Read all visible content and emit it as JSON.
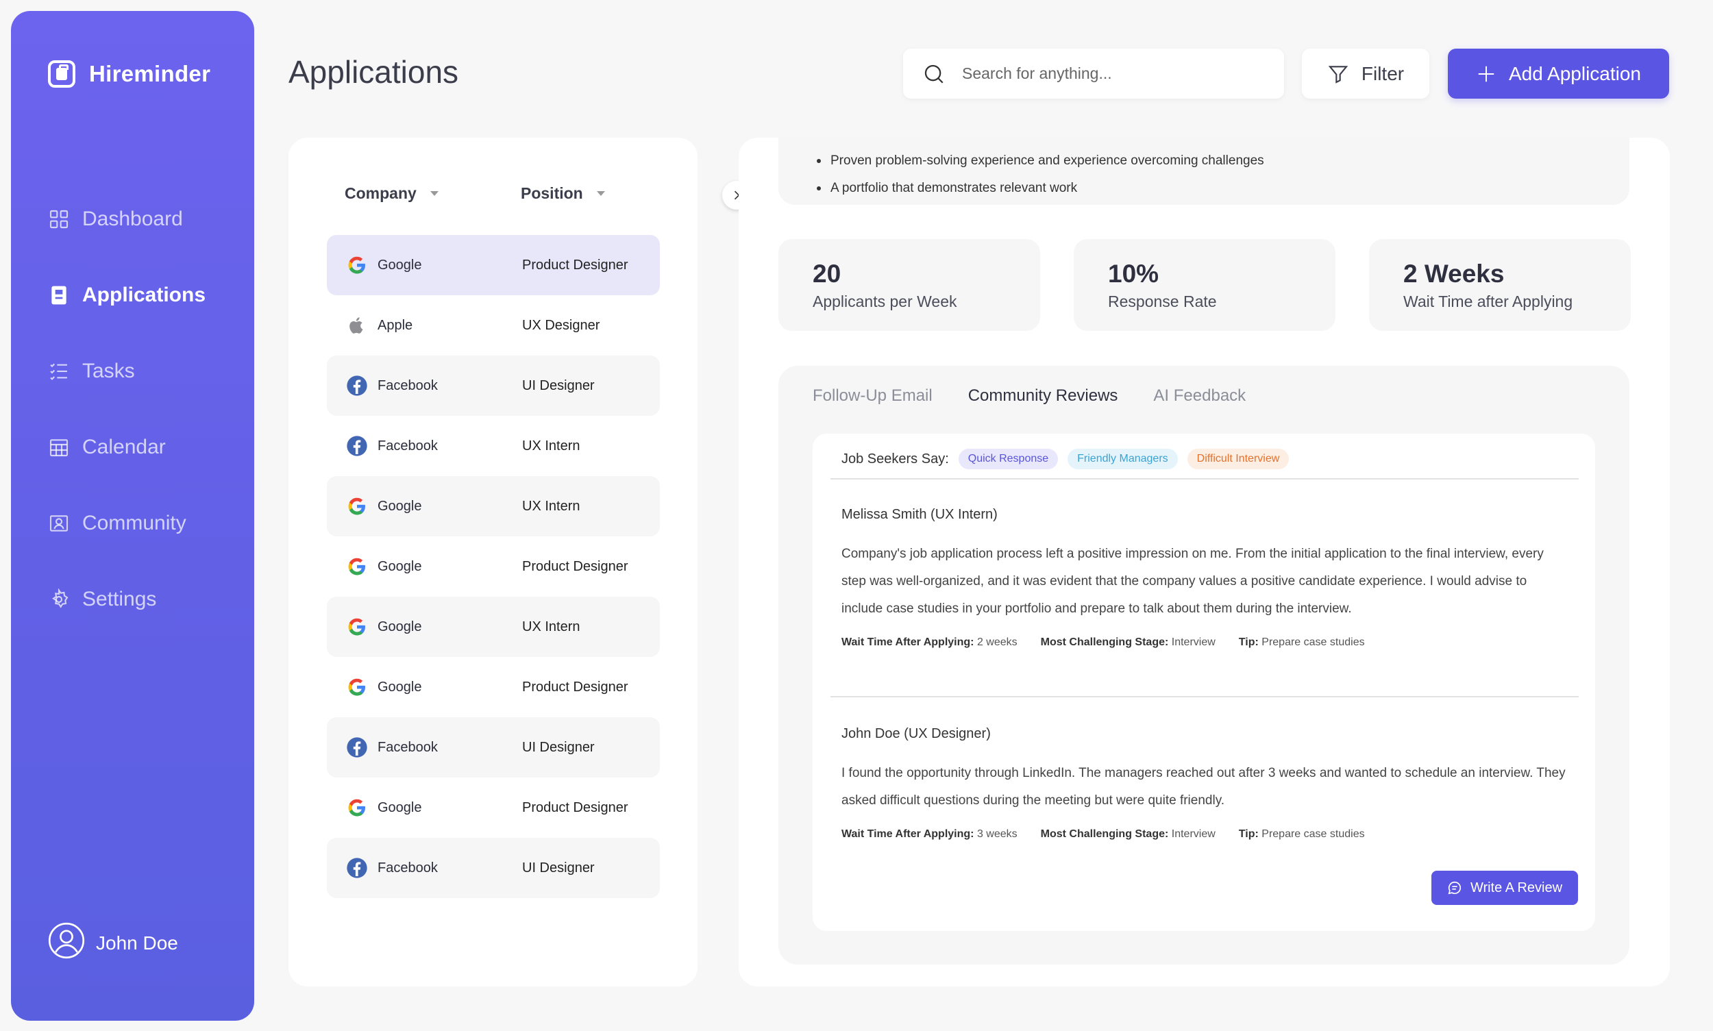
{
  "app": {
    "name": "Hireminder"
  },
  "sidebar": {
    "items": [
      {
        "label": "Dashboard",
        "icon": "grid-icon",
        "active": false
      },
      {
        "label": "Applications",
        "icon": "document-icon",
        "active": true
      },
      {
        "label": "Tasks",
        "icon": "checklist-icon",
        "active": false
      },
      {
        "label": "Calendar",
        "icon": "calendar-icon",
        "active": false
      },
      {
        "label": "Community",
        "icon": "community-icon",
        "active": false
      },
      {
        "label": "Settings",
        "icon": "gear-icon",
        "active": false
      }
    ],
    "user": {
      "name": "John Doe"
    }
  },
  "header": {
    "title": "Applications",
    "search_placeholder": "Search for anything...",
    "filter_label": "Filter",
    "add_label": "Add Application"
  },
  "list": {
    "columns": [
      "Company",
      "Position"
    ],
    "rows": [
      {
        "company": "Google",
        "position": "Product Designer",
        "logo": "google"
      },
      {
        "company": "Apple",
        "position": "UX Designer",
        "logo": "apple"
      },
      {
        "company": "Facebook",
        "position": "UI Designer",
        "logo": "facebook"
      },
      {
        "company": "Facebook",
        "position": "UX Intern",
        "logo": "facebook"
      },
      {
        "company": "Google",
        "position": "UX Intern",
        "logo": "google"
      },
      {
        "company": "Google",
        "position": "Product Designer",
        "logo": "google"
      },
      {
        "company": "Google",
        "position": "UX Intern",
        "logo": "google"
      },
      {
        "company": "Google",
        "position": "Product Designer",
        "logo": "google"
      },
      {
        "company": "Facebook",
        "position": "UI Designer",
        "logo": "facebook"
      },
      {
        "company": "Google",
        "position": "Product Designer",
        "logo": "google"
      },
      {
        "company": "Facebook",
        "position": "UI Designer",
        "logo": "facebook"
      }
    ]
  },
  "detail": {
    "requirements": [
      "Proven problem-solving experience and experience overcoming challenges",
      "A portfolio that demonstrates relevant work"
    ],
    "stats": [
      {
        "value": "20",
        "label": "Applicants per Week"
      },
      {
        "value": "10%",
        "label": "Response Rate"
      },
      {
        "value": "2 Weeks",
        "label": "Wait Time after Applying"
      }
    ],
    "tabs": [
      {
        "label": "Follow-Up Email",
        "active": false
      },
      {
        "label": "Community Reviews",
        "active": true
      },
      {
        "label": "AI Feedback",
        "active": false
      }
    ],
    "seekers_label": "Job Seekers Say:",
    "chips": [
      "Quick Response",
      "Friendly Managers",
      "Difficult Interview"
    ],
    "reviews": [
      {
        "reviewer": "Melissa Smith (UX Intern)",
        "text": "Company's job application process left a positive impression on me. From the initial application to the final interview, every step was well-organized, and it was evident that the company values a positive candidate experience.  I would advise to include case studies in your portfolio and prepare to talk about them during the interview.",
        "wait_label": "Wait Time After Applying:",
        "wait": "2 weeks",
        "stage_label": "Most Challenging Stage:",
        "stage": "Interview",
        "tip_label": "Tip:",
        "tip": "Prepare case studies"
      },
      {
        "reviewer": "John Doe (UX Designer)",
        "text": "I found the opportunity through LinkedIn. The managers reached out after 3 weeks and wanted to schedule an interview. They asked difficult questions during the meeting but were quite friendly.",
        "wait_label": "Wait Time After Applying:",
        "wait": "3 weeks",
        "stage_label": "Most Challenging Stage:",
        "stage": "Interview",
        "tip_label": "Tip:",
        "tip": "Prepare case studies"
      }
    ],
    "write_review_label": "Write A Review"
  },
  "colors": {
    "accent": "#5b55e4",
    "sidebar_top": "#6c63ee",
    "selected_row": "#e8e7f9"
  }
}
